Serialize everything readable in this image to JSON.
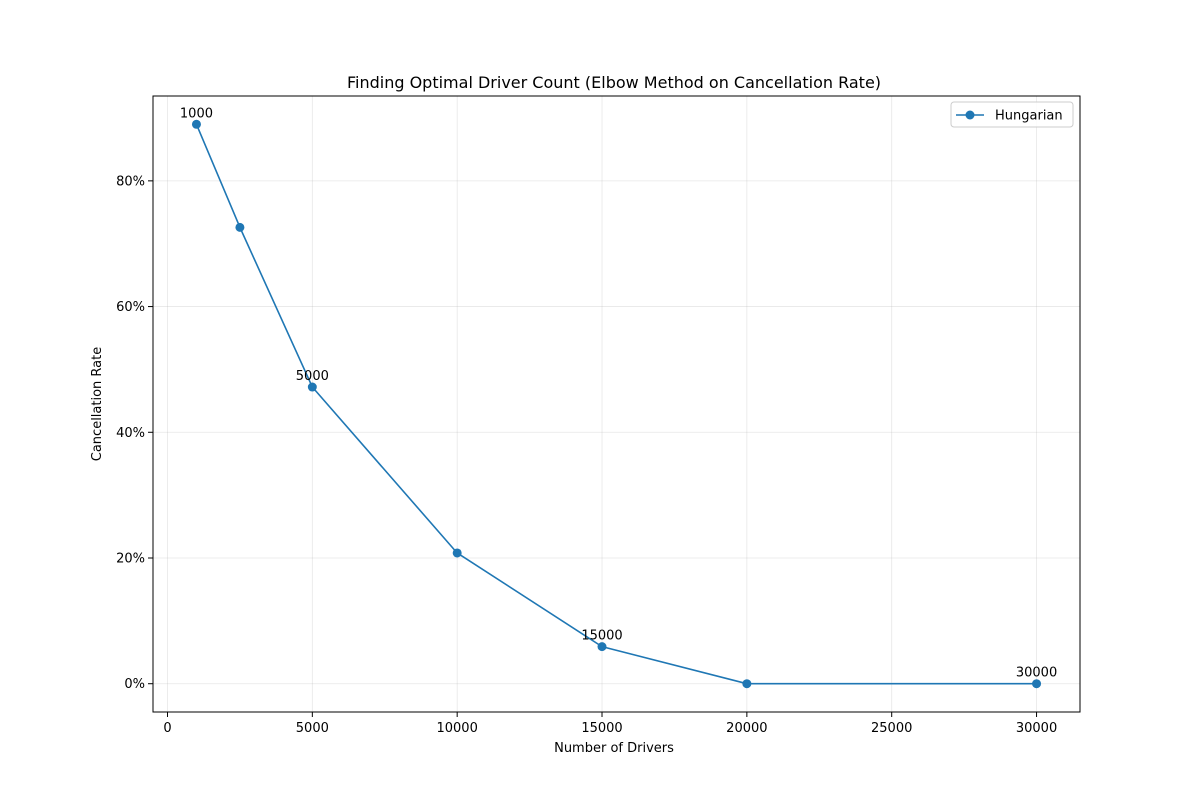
{
  "chart_data": {
    "type": "line",
    "title": "Finding Optimal Driver Count (Elbow Method on Cancellation Rate)",
    "xlabel": "Number of Drivers",
    "ylabel": "Cancellation Rate",
    "xlim": [
      -500,
      31500
    ],
    "ylim": [
      -0.045,
      0.935
    ],
    "xticks": [
      0,
      5000,
      10000,
      15000,
      20000,
      25000,
      30000
    ],
    "xtick_labels": [
      "0",
      "5000",
      "10000",
      "15000",
      "20000",
      "25000",
      "30000"
    ],
    "yticks": [
      0,
      0.2,
      0.4,
      0.6,
      0.8
    ],
    "ytick_labels": [
      "0%",
      "20%",
      "40%",
      "60%",
      "80%"
    ],
    "grid": true,
    "legend_position": "top-right",
    "series": [
      {
        "name": "Hungarian",
        "color": "#1f77b4",
        "marker": "circle",
        "x": [
          1000,
          2500,
          5000,
          10000,
          15000,
          20000,
          30000
        ],
        "y": [
          0.89,
          0.726,
          0.472,
          0.208,
          0.059,
          0.0,
          0.0
        ]
      }
    ],
    "annotations": [
      {
        "x": 1000,
        "y": 0.89,
        "text": "1000"
      },
      {
        "x": 5000,
        "y": 0.472,
        "text": "5000"
      },
      {
        "x": 15000,
        "y": 0.059,
        "text": "15000"
      },
      {
        "x": 30000,
        "y": 0.0,
        "text": "30000"
      }
    ]
  }
}
